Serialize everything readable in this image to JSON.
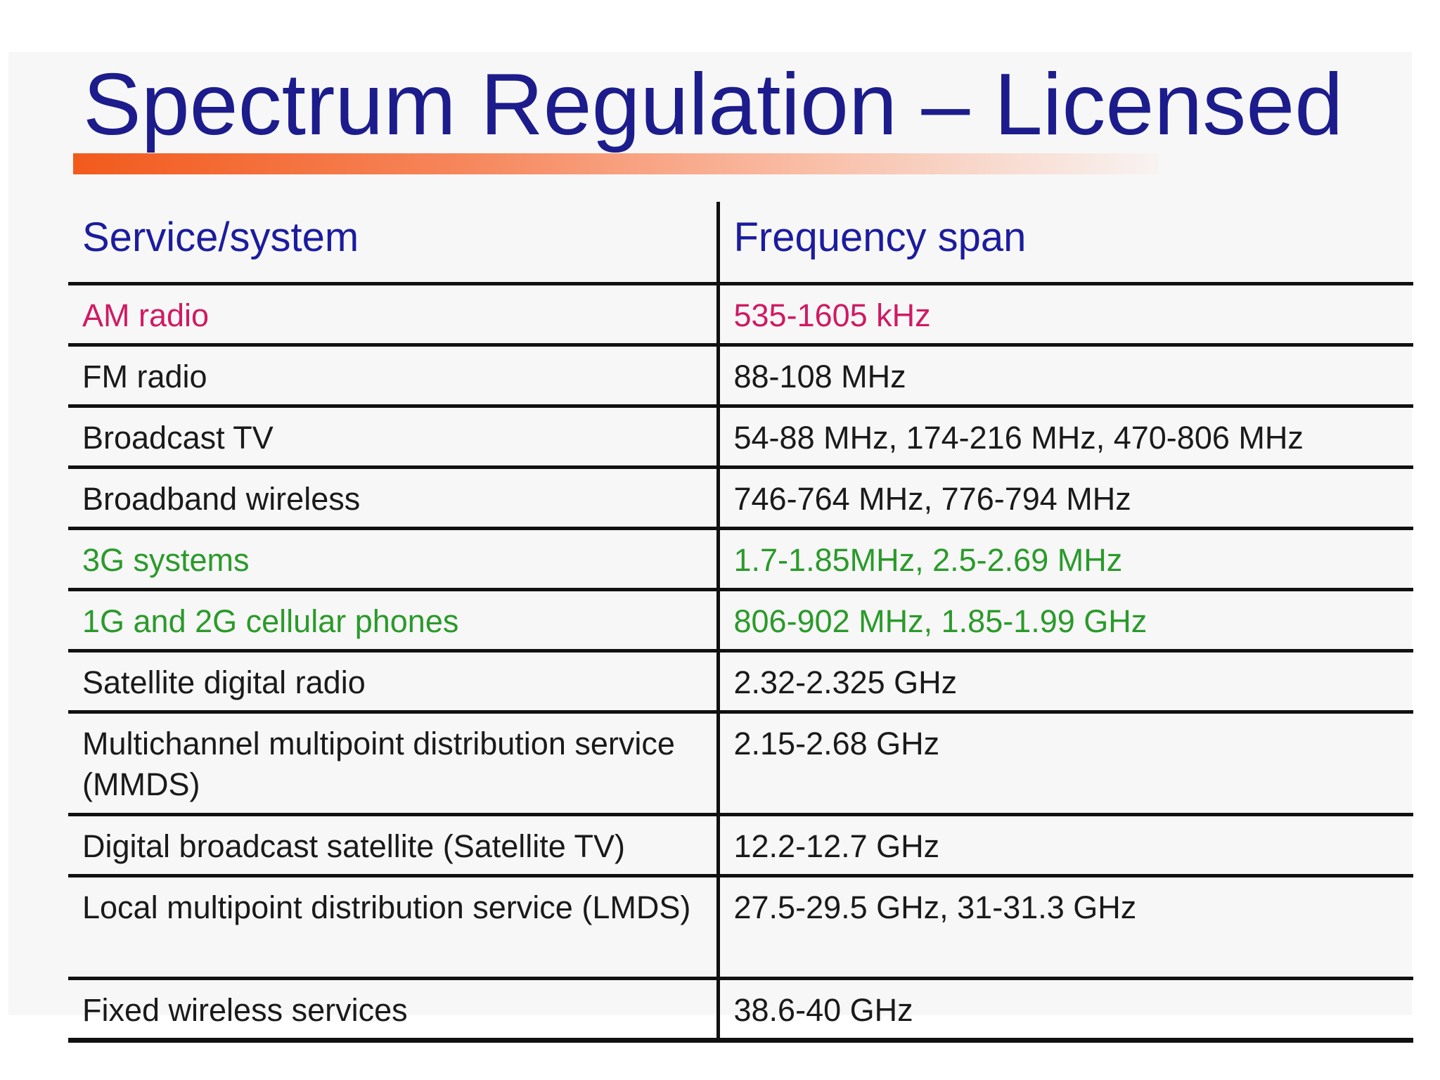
{
  "title": "Spectrum Regulation – Licensed",
  "table": {
    "headers": [
      "Service/system",
      "Frequency span"
    ],
    "rows": [
      {
        "service": "AM radio",
        "frequency": "535-1605 kHz",
        "color": "#d01a63"
      },
      {
        "service": "FM radio",
        "frequency": "88-108 MHz",
        "color": "#1a1a1a"
      },
      {
        "service": "Broadcast TV",
        "frequency": "54-88 MHz, 174-216 MHz, 470-806 MHz",
        "color": "#1a1a1a"
      },
      {
        "service": "Broadband wireless",
        "frequency": "746-764 MHz, 776-794 MHz",
        "color": "#1a1a1a"
      },
      {
        "service": "3G systems",
        "frequency": "1.7-1.85MHz, 2.5-2.69 MHz",
        "color": "#2a9a2a"
      },
      {
        "service": "1G and 2G cellular phones",
        "frequency": "806-902 MHz, 1.85-1.99 GHz",
        "color": "#2a9a2a"
      },
      {
        "service": "Satellite digital radio",
        "frequency": "2.32-2.325 GHz",
        "color": "#1a1a1a"
      },
      {
        "service": "Multichannel multipoint distribution service (MMDS)",
        "frequency": "2.15-2.68 GHz",
        "color": "#1a1a1a"
      },
      {
        "service": "Digital broadcast satellite (Satellite TV)",
        "frequency": "12.2-12.7 GHz",
        "color": "#1a1a1a"
      },
      {
        "service": "Local multipoint distribution service (LMDS)",
        "frequency": "27.5-29.5 GHz, 31-31.3 GHz",
        "color": "#1a1a1a"
      },
      {
        "service": "Fixed wireless services",
        "frequency": "38.6-40 GHz",
        "color": "#1a1a1a"
      }
    ]
  }
}
